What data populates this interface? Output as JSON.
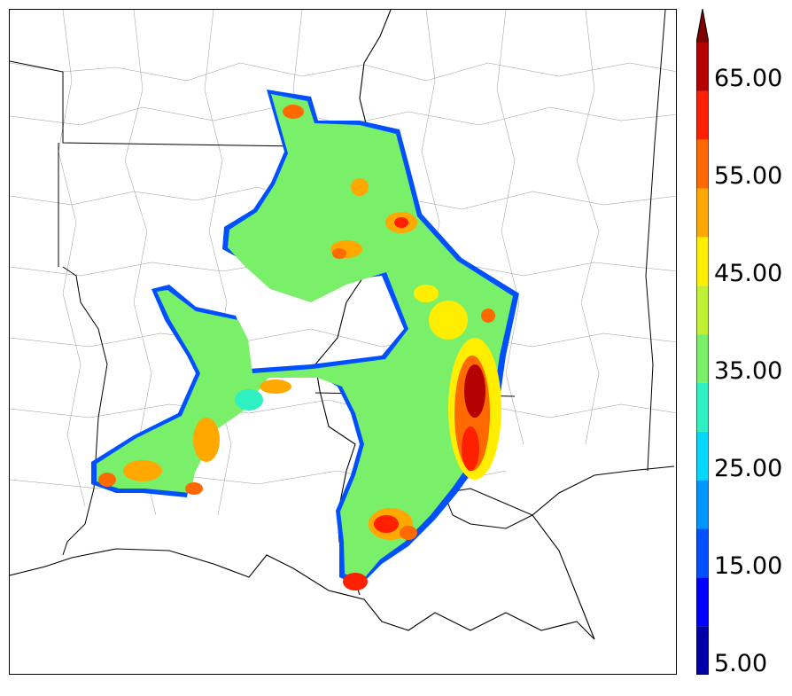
{
  "colorbar": {
    "labels": [
      "65.00",
      "55.00",
      "45.00",
      "35.00",
      "25.00",
      "15.00",
      "5.00"
    ],
    "levels": [
      5,
      10,
      15,
      20,
      25,
      30,
      35,
      40,
      45,
      50,
      55,
      60,
      65,
      70
    ],
    "colors": [
      "#0000a8",
      "#0000ff",
      "#0050ff",
      "#0096ff",
      "#00d8ff",
      "#2ef0c0",
      "#7af06a",
      "#c0f034",
      "#ffee00",
      "#ffa800",
      "#ff6a00",
      "#ff2000",
      "#b40000",
      "#800000"
    ],
    "extend": "max"
  },
  "map": {
    "region": "Lower Mississippi Valley (Louisiana / Mississippi / Arkansas)",
    "field_range": [
      5,
      70
    ]
  }
}
